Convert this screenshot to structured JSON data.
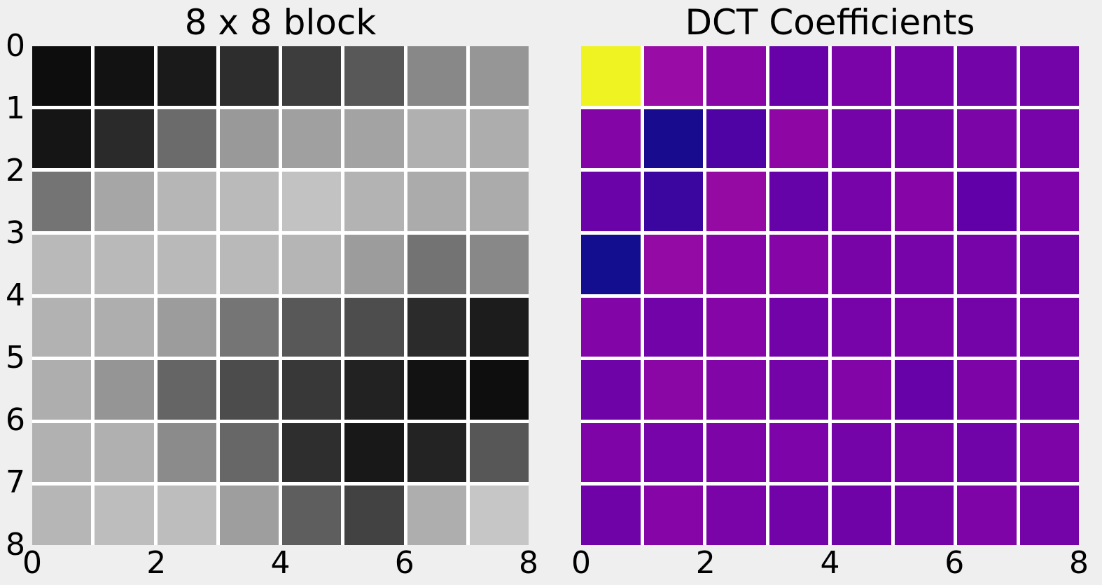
{
  "figure": {
    "background_color": "#efefef",
    "cell_gap_color": "#ffffff",
    "text_color": "#000000"
  },
  "chart_data": [
    {
      "type": "heatmap",
      "title": "8 x 8 block",
      "colormap": "grayscale",
      "rows": 8,
      "cols": 8,
      "x_range": [
        0,
        8
      ],
      "y_range": [
        0,
        8
      ],
      "y_inverted": true,
      "grid_lines": "white gaps between cells",
      "x_ticks": [
        "0",
        "2",
        "4",
        "6",
        "8"
      ],
      "x_tick_values": [
        0,
        2,
        4,
        6,
        8
      ],
      "y_ticks": [
        "0",
        "1",
        "2",
        "3",
        "4",
        "5",
        "6",
        "7",
        "8"
      ],
      "y_tick_values": [
        0,
        1,
        2,
        3,
        4,
        5,
        6,
        7,
        8
      ],
      "cell_colors": [
        [
          "#0d0d0d",
          "#121212",
          "#1a1a1a",
          "#2d2d2d",
          "#3d3d3d",
          "#585858",
          "#888888",
          "#969696"
        ],
        [
          "#151515",
          "#2a2a2a",
          "#6b6b6b",
          "#999999",
          "#a0a0a0",
          "#a3a3a3",
          "#b0b0b0",
          "#adadad"
        ],
        [
          "#747474",
          "#a6a6a6",
          "#b6b6b6",
          "#bababa",
          "#c2c2c2",
          "#b3b3b3",
          "#ababab",
          "#ababab"
        ],
        [
          "#b9b9b9",
          "#b9b9b9",
          "#b9b9b9",
          "#b9b9b9",
          "#b5b5b5",
          "#9c9c9c",
          "#737373",
          "#888888"
        ],
        [
          "#b2b2b2",
          "#aeaeae",
          "#9c9c9c",
          "#757575",
          "#585858",
          "#4d4d4d",
          "#2b2b2b",
          "#1c1c1c"
        ],
        [
          "#aeaeae",
          "#959595",
          "#656565",
          "#4c4c4c",
          "#383838",
          "#222222",
          "#121212",
          "#0e0e0e"
        ],
        [
          "#b1b1b1",
          "#b0b0b0",
          "#8b8b8b",
          "#676767",
          "#2e2e2e",
          "#181818",
          "#232323",
          "#575757"
        ],
        [
          "#b6b6b6",
          "#bdbdbd",
          "#bdbdbd",
          "#9e9e9e",
          "#5e5e5e",
          "#424242",
          "#aeaeae",
          "#c6c6c6"
        ]
      ]
    },
    {
      "type": "heatmap",
      "title": "DCT Coefficients",
      "colormap": "plasma",
      "rows": 8,
      "cols": 8,
      "x_range": [
        0,
        8
      ],
      "y_range": [
        0,
        8
      ],
      "y_inverted": true,
      "grid_lines": "white gaps between cells",
      "x_ticks": [
        "0",
        "2",
        "4",
        "6",
        "8"
      ],
      "x_tick_values": [
        0,
        2,
        4,
        6,
        8
      ],
      "y_ticks": [],
      "y_tick_values": [],
      "cell_colors": [
        [
          "#eff321",
          "#990ca6",
          "#8806a6",
          "#6602a8",
          "#7a04a8",
          "#7604a8",
          "#7204a8",
          "#7304a8"
        ],
        [
          "#8405a6",
          "#190b8d",
          "#4f03a5",
          "#8e07a4",
          "#7504a8",
          "#7504a8",
          "#7c05a8",
          "#7704a8"
        ],
        [
          "#6a03a8",
          "#3b05a0",
          "#960aa4",
          "#6502a8",
          "#7704a8",
          "#8505a6",
          "#6100a8",
          "#7c04a8"
        ],
        [
          "#120e8f",
          "#940aa4",
          "#8505a7",
          "#8505a7",
          "#7804a8",
          "#7604a8",
          "#7704a8",
          "#7104a8"
        ],
        [
          "#8205a7",
          "#7103a8",
          "#8505a6",
          "#7103a8",
          "#7704a8",
          "#7a04a8",
          "#7504a8",
          "#7604a8"
        ],
        [
          "#6e03a8",
          "#8a06a5",
          "#8205a7",
          "#7504a8",
          "#8105a7",
          "#6602a8",
          "#7d04a7",
          "#7204a8"
        ],
        [
          "#7e04a7",
          "#7604a8",
          "#7d04a7",
          "#7c04a8",
          "#7404a8",
          "#7804a8",
          "#7104a8",
          "#7d04a7"
        ],
        [
          "#7003a8",
          "#8505a6",
          "#7a04a8",
          "#7103a8",
          "#6f03a8",
          "#7404a8",
          "#7e04a7",
          "#7504a8"
        ]
      ]
    }
  ]
}
